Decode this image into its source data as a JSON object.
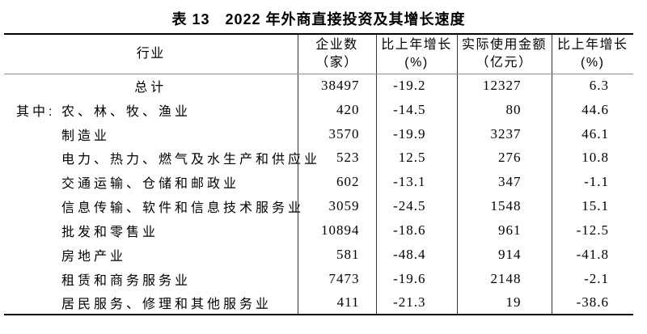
{
  "title": "表 13　2022 年外商直接投资及其增长速度",
  "table": {
    "header": {
      "industry": "行业",
      "enterprises_line1": "企业数",
      "enterprises_line2": "（家）",
      "enterprises_growth_line1": "比上年增长",
      "enterprises_growth_line2": "(%)",
      "amount_line1": "实际使用金额",
      "amount_line2": "（亿元）",
      "amount_growth_line1": "比上年增长",
      "amount_growth_line2": "(%)"
    },
    "rows": [
      {
        "prefix": "",
        "industry": "总计",
        "align": "center",
        "enterprises": "38497",
        "enterprises_growth": "-19.2",
        "amount_used": "12327",
        "amount_growth": "6.3"
      },
      {
        "prefix": "其中:",
        "industry": "农、林、牧、渔业",
        "align": "prefixed",
        "enterprises": "420",
        "enterprises_growth": "-14.5",
        "amount_used": "80",
        "amount_growth": "44.6"
      },
      {
        "prefix": "",
        "industry": "制造业",
        "align": "indent",
        "enterprises": "3570",
        "enterprises_growth": "-19.9",
        "amount_used": "3237",
        "amount_growth": "46.1"
      },
      {
        "prefix": "",
        "industry": "电力、热力、燃气及水生产和供应业",
        "align": "indent",
        "enterprises": "523",
        "enterprises_growth": "12.5",
        "amount_used": "276",
        "amount_growth": "10.8"
      },
      {
        "prefix": "",
        "industry": "交通运输、仓储和邮政业",
        "align": "indent",
        "enterprises": "602",
        "enterprises_growth": "-13.1",
        "amount_used": "347",
        "amount_growth": "-1.1"
      },
      {
        "prefix": "",
        "industry": "信息传输、软件和信息技术服务业",
        "align": "indent",
        "enterprises": "3059",
        "enterprises_growth": "-24.5",
        "amount_used": "1548",
        "amount_growth": "15.1"
      },
      {
        "prefix": "",
        "industry": "批发和零售业",
        "align": "indent",
        "enterprises": "10894",
        "enterprises_growth": "-18.6",
        "amount_used": "961",
        "amount_growth": "-12.5"
      },
      {
        "prefix": "",
        "industry": "房地产业",
        "align": "indent",
        "enterprises": "581",
        "enterprises_growth": "-48.4",
        "amount_used": "914",
        "amount_growth": "-41.8"
      },
      {
        "prefix": "",
        "industry": "租赁和商务服务业",
        "align": "indent",
        "enterprises": "7473",
        "enterprises_growth": "-19.6",
        "amount_used": "2148",
        "amount_growth": "-2.1"
      },
      {
        "prefix": "",
        "industry": "居民服务、修理和其他服务业",
        "align": "indent",
        "enterprises": "411",
        "enterprises_growth": "-21.3",
        "amount_used": "19",
        "amount_growth": "-38.6"
      }
    ]
  },
  "colors": {
    "background": "#ffffff",
    "text": "#000000",
    "heavy_rule": "#000000",
    "header_rule": "#8c8c8c",
    "column_rule": "#333333"
  }
}
